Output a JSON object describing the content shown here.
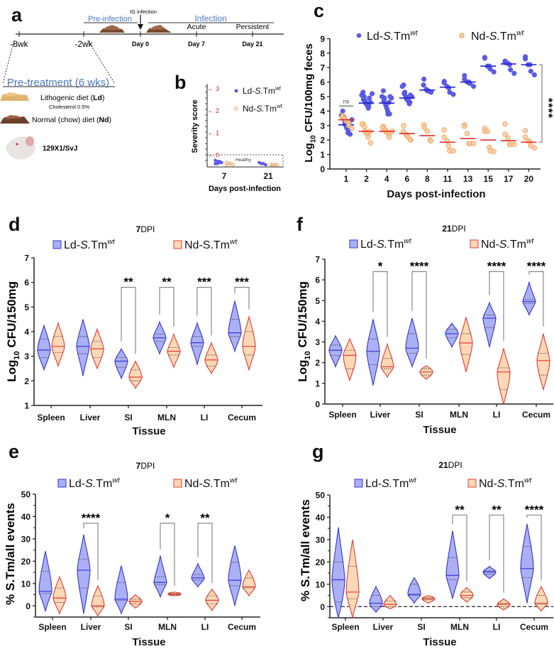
{
  "panel_labels": {
    "a": "a",
    "b": "b",
    "c": "c",
    "d": "d",
    "e": "e",
    "f": "f",
    "g": "g"
  },
  "colors": {
    "ld_stroke": "#3535d8",
    "ld_fill": "#aab0f3",
    "nd_stroke": "#e33b33",
    "nd_fill": "#fcd8b6",
    "ld_point": "#5c5ce8",
    "nd_point": "#f9cb9c",
    "nd_point_stroke": "#ef9f5c",
    "ld_median": "#2323c8",
    "nd_median": "#e42a2a",
    "phase_text": "#4a77c4",
    "severity_tick": "#d62020"
  },
  "timeline": {
    "ig_infection": "IG infection",
    "pre_infection": "Pre-infection",
    "infection": "Infection",
    "acute": "Acute",
    "persistent": "Persistent",
    "ticks": [
      "-8wk",
      "-2wk",
      "Day 0",
      "Day 7",
      "Day 21"
    ],
    "pretreatment": "Pre-treatment (6 wks)",
    "ld_diet": "Lithogenic diet (",
    "ld_abbr": "Ld",
    "close": ")",
    "cholesterol": "Cholesterol 0.5%",
    "nd_diet": "Normal (chow) diet (",
    "nd_abbr": "Nd",
    "strain": "129X1/SvJ",
    "icons": [
      "chow-pellets-icon",
      "mouse-icon",
      "arrow-down-icon"
    ]
  },
  "chart_data": [
    {
      "panel": "b",
      "type": "scatter",
      "ylabel": "Severity score",
      "xlabel": "Days post-infection",
      "categories": [
        "7",
        "21"
      ],
      "yticks": [
        "0",
        "1",
        "2",
        "3"
      ],
      "ylim": [
        -0.55,
        3
      ],
      "annotation": "Healthy",
      "series": [
        {
          "name": "Ld-S.Tm",
          "italic": "S.",
          "sup": "wt",
          "values": [
            [
              -0.25,
              -0.3,
              -0.35,
              -0.35,
              -0.4,
              -0.4,
              -0.3
            ],
            [
              -0.35,
              -0.4,
              -0.4,
              -0.45
            ]
          ]
        },
        {
          "name": "Nd-S.Tm",
          "italic": "S.",
          "sup": "wt",
          "values": [
            [
              -0.35,
              -0.4,
              -0.4,
              -0.45,
              -0.45
            ],
            [
              -0.45,
              -0.45,
              -0.45,
              -0.45
            ]
          ]
        }
      ]
    },
    {
      "panel": "c",
      "type": "scatter",
      "ylabel": [
        "Log",
        "10",
        " CFU/100mg feces"
      ],
      "xlabel": "Days post-infection",
      "categories": [
        "1",
        "2",
        "4",
        "6",
        "8",
        "11",
        "13",
        "15",
        "17",
        "20"
      ],
      "ylim": [
        0,
        9
      ],
      "yticks": [
        "0",
        "1",
        "2",
        "3",
        "4",
        "5",
        "6",
        "7",
        "8",
        "9"
      ],
      "annotations": {
        "ns": "ns",
        "sig": "****"
      },
      "series": [
        {
          "name": "Ld-S.Tm",
          "italic": "S.",
          "sup": "wt",
          "medians": [
            3.05,
            4.55,
            4.55,
            4.9,
            5.45,
            5.65,
            6.0,
            7.1,
            7.25,
            7.2
          ],
          "points": [
            [
              4.0,
              3.7,
              3.6,
              3.5,
              3.3,
              3.1,
              3.0,
              2.9,
              2.8,
              2.7,
              2.5,
              2.4,
              3.2,
              3.4
            ],
            [
              5.3,
              5.1,
              5.0,
              4.8,
              4.7,
              4.6,
              4.5,
              4.5,
              4.4,
              4.3,
              4.2,
              4.6,
              4.9,
              5.2
            ],
            [
              5.4,
              5.0,
              4.9,
              4.7,
              4.5,
              4.4,
              4.2,
              4.0,
              3.8,
              3.8,
              4.6,
              4.9,
              5.0
            ],
            [
              5.8,
              5.7,
              5.3,
              5.2,
              5.0,
              4.9,
              4.8,
              4.8,
              4.7,
              4.6,
              4.5,
              5.0,
              5.1
            ],
            [
              6.2,
              5.8,
              5.5,
              5.4,
              5.4,
              5.3,
              5.3
            ],
            [
              6.05,
              5.95,
              5.7,
              5.6,
              5.3,
              5.15
            ],
            [
              6.45,
              6.2,
              6.0,
              6.0,
              5.9,
              5.7
            ],
            [
              7.7,
              7.65,
              7.1,
              7.1,
              6.9,
              6.7
            ],
            [
              7.45,
              7.35,
              7.3,
              7.2,
              6.85,
              6.6
            ],
            [
              7.75,
              7.6,
              7.2,
              7.2,
              6.75,
              6.5
            ]
          ]
        },
        {
          "name": "Nd-S.Tm",
          "italic": "S.",
          "sup": "wt",
          "medians": [
            3.4,
            2.6,
            2.6,
            2.45,
            2.3,
            1.85,
            2.1,
            2.0,
            1.95,
            1.85
          ],
          "points": [
            [
              3.7,
              3.6,
              3.5,
              3.4,
              3.3,
              3.2,
              3.0,
              2.8
            ],
            [
              3.1,
              3.1,
              2.9,
              2.6,
              2.5,
              2.4,
              2.2,
              1.8,
              2.6
            ],
            [
              2.95,
              2.85,
              2.7,
              2.6,
              2.5,
              2.4,
              2.2,
              2.6
            ],
            [
              3.0,
              2.6,
              2.4,
              2.3,
              2.2,
              2.0,
              2.0
            ],
            [
              3.05,
              2.85,
              2.6,
              2.0,
              1.95
            ],
            [
              2.7,
              2.2,
              1.95,
              1.6,
              1.25,
              1.25
            ],
            [
              3.05,
              2.95,
              2.45,
              1.75,
              1.75,
              1.75
            ],
            [
              2.8,
              2.6,
              2.6,
              1.5,
              1.25,
              1.2
            ],
            [
              3.1,
              2.4,
              2.15,
              1.7,
              1.7,
              1.7
            ],
            [
              2.65,
              2.2,
              1.95,
              1.85,
              1.6,
              1.45
            ]
          ]
        }
      ]
    },
    {
      "panel": "d",
      "type": "violin",
      "title_bold": "7",
      "title": "DPI",
      "ylabel": [
        "Log",
        "10",
        " CFU/150mg"
      ],
      "xlabel": "Tissue",
      "categories": [
        "Spleen",
        "Liver",
        "SI",
        "MLN",
        "LI",
        "Cecum"
      ],
      "ylim": [
        1,
        7
      ],
      "yticks": [
        "1",
        "2",
        "3",
        "4",
        "5",
        "6",
        "7"
      ],
      "value_format": "[min, q1, median, q3, max]",
      "series": [
        {
          "name": "Ld-S.Tm",
          "italic": "S.",
          "sup": "wt",
          "values": [
            [
              2.45,
              2.95,
              3.25,
              3.7,
              4.25
            ],
            [
              2.2,
              3.1,
              3.4,
              3.8,
              4.5
            ],
            [
              2.1,
              2.55,
              2.8,
              2.95,
              3.3
            ],
            [
              3.1,
              3.6,
              3.75,
              3.9,
              4.4
            ],
            [
              2.65,
              3.4,
              3.55,
              3.8,
              4.35
            ],
            [
              3.2,
              3.8,
              3.95,
              4.5,
              5.25
            ]
          ]
        },
        {
          "name": "Nd-S.Tm",
          "italic": "",
          "sup": "wt",
          "values": [
            [
              2.6,
              3.15,
              3.4,
              3.8,
              4.35
            ],
            [
              2.5,
              2.95,
              3.3,
              3.6,
              4.1
            ],
            [
              1.7,
              2.0,
              2.15,
              2.45,
              2.8
            ],
            [
              2.55,
              3.05,
              3.2,
              3.35,
              3.9
            ],
            [
              2.3,
              2.6,
              2.85,
              3.05,
              3.55
            ],
            [
              2.45,
              3.05,
              3.4,
              4.0,
              4.6
            ]
          ]
        }
      ],
      "significance": [
        null,
        null,
        "**",
        "**",
        "***",
        "***"
      ]
    },
    {
      "panel": "f",
      "type": "violin",
      "title_bold": "21",
      "title": "DPI",
      "ylabel": [
        "Log",
        "10",
        " CFU/150mg"
      ],
      "xlabel": "Tissue",
      "categories": [
        "Spleen",
        "Liver",
        "SI",
        "MLN",
        "LI",
        "Cecum"
      ],
      "ylim": [
        0,
        7
      ],
      "yticks": [
        "0",
        "1",
        "2",
        "3",
        "4",
        "5",
        "6",
        "7"
      ],
      "value_format": "[min, q1, median, q3, max]",
      "series": [
        {
          "name": "Ld-S.Tm",
          "italic": "S.",
          "sup": "wt",
          "values": [
            [
              1.8,
              2.35,
              2.6,
              2.85,
              3.3
            ],
            [
              0.9,
              1.9,
              2.55,
              3.15,
              4.1
            ],
            [
              1.8,
              2.45,
              2.7,
              3.4,
              4.15
            ],
            [
              2.75,
              3.2,
              3.4,
              3.6,
              3.9
            ],
            [
              2.75,
              3.7,
              4.15,
              4.3,
              4.9
            ],
            [
              4.3,
              4.85,
              4.95,
              5.05,
              5.9
            ]
          ]
        },
        {
          "name": "Nd-S.Tm",
          "italic": "S.",
          "sup": "wt",
          "values": [
            [
              1.15,
              1.7,
              2.35,
              2.6,
              3.15
            ],
            [
              1.3,
              1.7,
              1.8,
              2.2,
              2.9
            ],
            [
              1.2,
              1.4,
              1.55,
              1.7,
              1.85
            ],
            [
              1.55,
              2.4,
              2.95,
              3.4,
              4.2
            ],
            [
              0.0,
              0.7,
              1.55,
              1.75,
              2.7
            ],
            [
              0.7,
              1.4,
              2.1,
              2.45,
              3.4
            ]
          ]
        }
      ],
      "significance": [
        null,
        "*",
        "****",
        null,
        "****",
        "****"
      ]
    },
    {
      "panel": "e",
      "type": "violin",
      "title_bold": "7",
      "title": "DPI",
      "ylabel": [
        "% S.Tm/all events"
      ],
      "xlabel": "Tissue",
      "categories": [
        "Spleen",
        "Liver",
        "SI",
        "MLN",
        "LI",
        "Cecum"
      ],
      "ylim": [
        -5,
        50
      ],
      "yticks": [
        "0",
        "10",
        "20",
        "30",
        "40",
        "50"
      ],
      "value_format": "[min, q1, median, q3, max]",
      "series": [
        {
          "name": "Ld-S.Tm",
          "italic": "S.",
          "sup": "wt",
          "values": [
            [
              -2.5,
              5.5,
              6.5,
              15.5,
              24.5
            ],
            [
              -3.5,
              8,
              16,
              21,
              32
            ],
            [
              -3.5,
              2.5,
              3,
              10.5,
              18
            ],
            [
              4,
              9.5,
              10.5,
              13,
              22.5
            ],
            [
              8.5,
              11.5,
              12.5,
              14,
              19
            ],
            [
              0,
              9,
              11.5,
              19.5,
              27
            ]
          ]
        },
        {
          "name": "Nd-S.Tm",
          "italic": "S.",
          "sup": "wt",
          "values": [
            [
              -3.5,
              1.5,
              3.5,
              8,
              13
            ],
            [
              -4.5,
              -0.5,
              0,
              4.5,
              9
            ],
            [
              -1,
              1,
              2,
              3,
              5
            ],
            [
              4.5,
              5,
              5.3,
              5.7,
              6.2
            ],
            [
              -2,
              1,
              2.5,
              4.5,
              7.5
            ],
            [
              4.5,
              8,
              8.5,
              12.5,
              16
            ]
          ]
        }
      ],
      "significance": [
        null,
        "****",
        null,
        "*",
        "**",
        null
      ]
    },
    {
      "panel": "g",
      "type": "violin",
      "title_bold": "21",
      "title": "DPI",
      "ylabel": [
        "% S.Tm/all events"
      ],
      "xlabel": "Tissue",
      "categories": [
        "Spleen",
        "Liver",
        "SI",
        "MLN",
        "LI",
        "Cecum"
      ],
      "ylim": [
        -5,
        50
      ],
      "yticks": [
        "0",
        "10",
        "20",
        "30",
        "40",
        "50"
      ],
      "reference_line": 0,
      "value_format": "[min, q1, median, q3, max]",
      "series": [
        {
          "name": "Ld-S.Tm",
          "italic": "S.",
          "sup": "wt",
          "values": [
            [
              -5,
              2,
              12,
              20,
              35.5
            ],
            [
              -2.5,
              0,
              1.5,
              5,
              9
            ],
            [
              1.5,
              5,
              5.5,
              10,
              13
            ],
            [
              3.5,
              12,
              14,
              22,
              34
            ],
            [
              12.5,
              14.5,
              15.5,
              16,
              18
            ],
            [
              1.5,
              13,
              17,
              27,
              37
            ]
          ]
        },
        {
          "name": "Nd-S.Tm",
          "italic": "S.",
          "sup": "wt",
          "values": [
            [
              -5,
              3.5,
              6.5,
              18,
              30
            ],
            [
              -1,
              0,
              1,
              2.5,
              5
            ],
            [
              1.5,
              3,
              3.5,
              4,
              5
            ],
            [
              2,
              4,
              5,
              6.5,
              8.5
            ],
            [
              -1.5,
              0,
              1,
              1.5,
              3.5
            ],
            [
              -2,
              1,
              1.5,
              5,
              9
            ]
          ]
        }
      ],
      "significance": [
        null,
        null,
        null,
        "**",
        "**",
        "****"
      ]
    }
  ]
}
